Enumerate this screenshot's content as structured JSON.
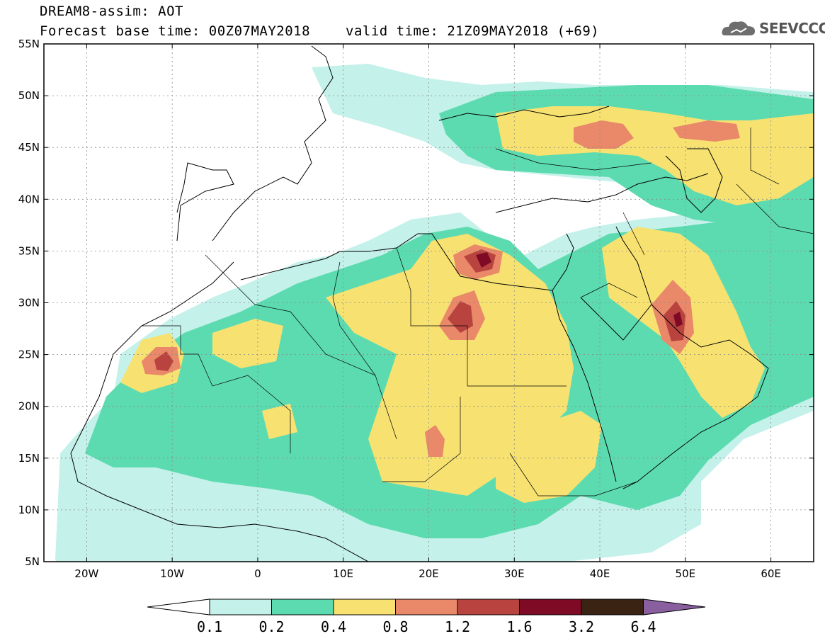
{
  "header": {
    "line1": "DREAM8-assim: AOT",
    "base_time": "Forecast base time: 00Z07MAY2018",
    "valid_time": "valid time: 21Z09MAY2018 (+69)"
  },
  "logo": {
    "text": "SEEVCCC",
    "icon": "cloud-logo-icon"
  },
  "map": {
    "lat_labels": [
      "55N",
      "50N",
      "45N",
      "40N",
      "35N",
      "30N",
      "25N",
      "20N",
      "15N",
      "10N",
      "5N"
    ],
    "lon_labels": [
      "20W",
      "10W",
      "0",
      "10E",
      "20E",
      "30E",
      "40E",
      "50E",
      "60E"
    ],
    "lon_range": [
      -25,
      65
    ],
    "lat_range": [
      5,
      55
    ]
  },
  "colorbar": {
    "labels": [
      "0.1",
      "0.2",
      "0.4",
      "0.8",
      "1.2",
      "1.6",
      "3.2",
      "6.4"
    ],
    "colors": [
      "#ffffff",
      "#c4f1ea",
      "#5ddbb0",
      "#f7e271",
      "#e9896a",
      "#b9443f",
      "#7e0a26",
      "#3a2313",
      "#8a5fa0"
    ]
  }
}
